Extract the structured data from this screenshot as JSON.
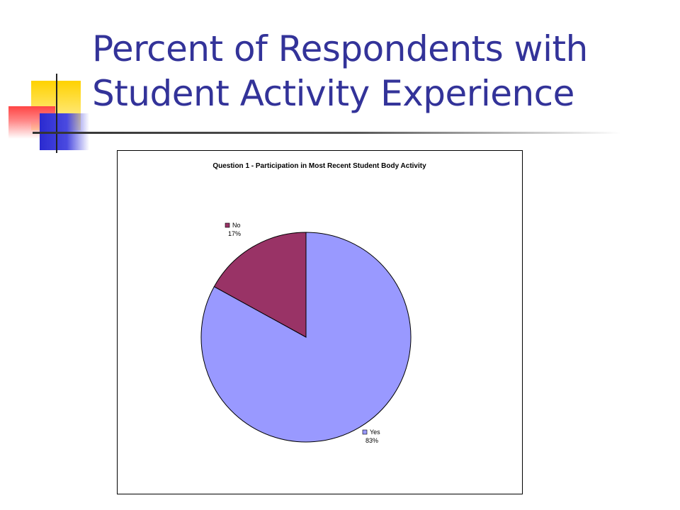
{
  "slide": {
    "title": "Percent of Respondents with Student Activity Experience"
  },
  "colors": {
    "title": "#333399",
    "slice_yes": "#9999FF",
    "slice_no": "#993366"
  },
  "chart_data": {
    "type": "pie",
    "title": "Question 1 - Participation in Most Recent Student Body Activity",
    "categories": [
      "No",
      "Yes"
    ],
    "values": [
      17,
      83
    ],
    "labels": [
      "17%",
      "83%"
    ],
    "legend": "inline labels with color keys next to each slice"
  }
}
